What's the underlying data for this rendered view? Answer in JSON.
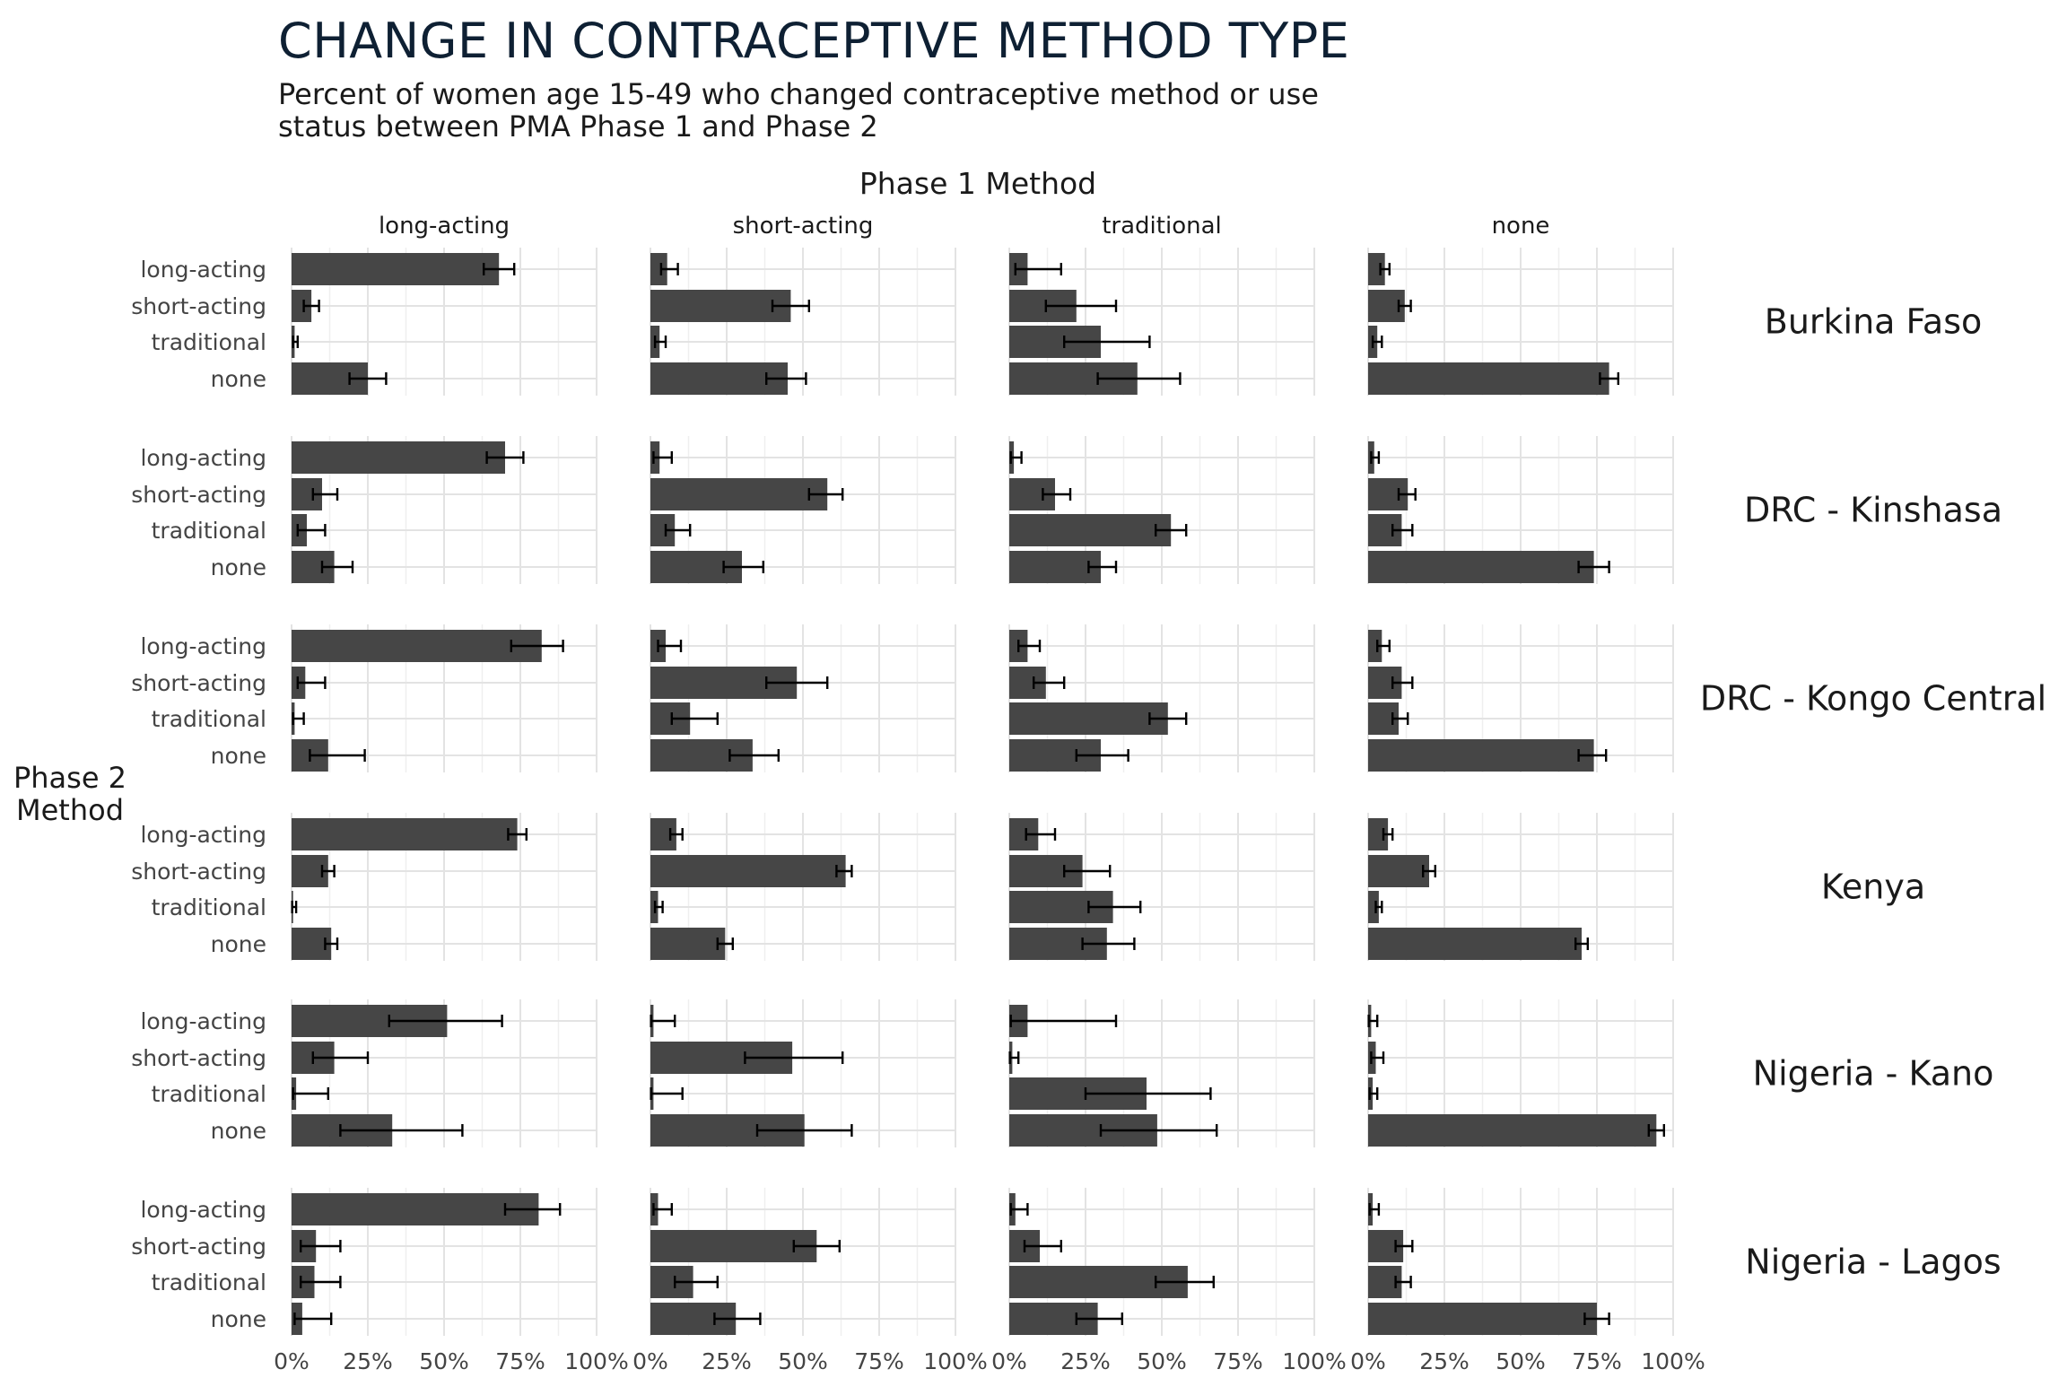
{
  "chart_data": {
    "type": "bar",
    "orientation": "horizontal",
    "title": "CHANGE IN CONTRACEPTIVE METHOD TYPE",
    "subtitle_lines": [
      "Percent of women age 15-49 who changed contraceptive method or use",
      "status between PMA Phase 1 and Phase 2"
    ],
    "column_facet_title": "Phase 1 Method",
    "columns": [
      "long-acting",
      "short-acting",
      "traditional",
      "none"
    ],
    "rows": [
      "Burkina Faso",
      "DRC - Kinshasa",
      "DRC - Kongo Central",
      "Kenya",
      "Nigeria - Kano",
      "Nigeria - Lagos"
    ],
    "ylabel_lines": [
      "Phase 2",
      "Method"
    ],
    "categories": [
      "long-acting",
      "short-acting",
      "traditional",
      "none"
    ],
    "xlim": [
      0,
      1
    ],
    "xticks": [
      0,
      0.25,
      0.5,
      0.75,
      1
    ],
    "xtick_labels": [
      "0%",
      "25%",
      "50%",
      "75%",
      "100%"
    ],
    "grid": true,
    "bar_color": "#464646",
    "panels": [
      [
        {
          "values": [
            0.68,
            0.065,
            0.01,
            0.25
          ],
          "lower": [
            0.63,
            0.04,
            0.005,
            0.19
          ],
          "upper": [
            0.73,
            0.09,
            0.02,
            0.31
          ]
        },
        {
          "values": [
            0.055,
            0.46,
            0.03,
            0.45
          ],
          "lower": [
            0.035,
            0.4,
            0.015,
            0.38
          ],
          "upper": [
            0.09,
            0.52,
            0.05,
            0.51
          ]
        },
        {
          "values": [
            0.06,
            0.22,
            0.3,
            0.42
          ],
          "lower": [
            0.02,
            0.12,
            0.18,
            0.29
          ],
          "upper": [
            0.17,
            0.35,
            0.46,
            0.56
          ]
        },
        {
          "values": [
            0.055,
            0.12,
            0.03,
            0.79
          ],
          "lower": [
            0.04,
            0.1,
            0.015,
            0.76
          ],
          "upper": [
            0.07,
            0.14,
            0.045,
            0.82
          ]
        }
      ],
      [
        {
          "values": [
            0.7,
            0.1,
            0.05,
            0.14
          ],
          "lower": [
            0.64,
            0.07,
            0.02,
            0.1
          ],
          "upper": [
            0.76,
            0.15,
            0.11,
            0.2
          ]
        },
        {
          "values": [
            0.03,
            0.58,
            0.08,
            0.3
          ],
          "lower": [
            0.01,
            0.52,
            0.05,
            0.24
          ],
          "upper": [
            0.07,
            0.63,
            0.13,
            0.37
          ]
        },
        {
          "values": [
            0.015,
            0.15,
            0.53,
            0.3
          ],
          "lower": [
            0.005,
            0.11,
            0.48,
            0.26
          ],
          "upper": [
            0.04,
            0.2,
            0.58,
            0.35
          ]
        },
        {
          "values": [
            0.02,
            0.13,
            0.11,
            0.74
          ],
          "lower": [
            0.01,
            0.1,
            0.08,
            0.69
          ],
          "upper": [
            0.035,
            0.155,
            0.145,
            0.79
          ]
        }
      ],
      [
        {
          "values": [
            0.82,
            0.045,
            0.01,
            0.12
          ],
          "lower": [
            0.72,
            0.02,
            0.005,
            0.06
          ],
          "upper": [
            0.89,
            0.11,
            0.04,
            0.24
          ]
        },
        {
          "values": [
            0.05,
            0.48,
            0.13,
            0.335
          ],
          "lower": [
            0.025,
            0.38,
            0.07,
            0.26
          ],
          "upper": [
            0.1,
            0.58,
            0.22,
            0.42
          ]
        },
        {
          "values": [
            0.06,
            0.12,
            0.52,
            0.3
          ],
          "lower": [
            0.03,
            0.08,
            0.46,
            0.22
          ],
          "upper": [
            0.1,
            0.18,
            0.58,
            0.39
          ]
        },
        {
          "values": [
            0.045,
            0.11,
            0.1,
            0.74
          ],
          "lower": [
            0.03,
            0.08,
            0.08,
            0.69
          ],
          "upper": [
            0.07,
            0.145,
            0.13,
            0.78
          ]
        }
      ],
      [
        {
          "values": [
            0.74,
            0.12,
            0.005,
            0.13
          ],
          "lower": [
            0.71,
            0.1,
            0.002,
            0.11
          ],
          "upper": [
            0.77,
            0.14,
            0.015,
            0.15
          ]
        },
        {
          "values": [
            0.085,
            0.64,
            0.025,
            0.245
          ],
          "lower": [
            0.065,
            0.61,
            0.015,
            0.22
          ],
          "upper": [
            0.105,
            0.66,
            0.04,
            0.27
          ]
        },
        {
          "values": [
            0.095,
            0.24,
            0.34,
            0.32
          ],
          "lower": [
            0.055,
            0.18,
            0.26,
            0.24
          ],
          "upper": [
            0.15,
            0.33,
            0.43,
            0.41
          ]
        },
        {
          "values": [
            0.065,
            0.2,
            0.035,
            0.7
          ],
          "lower": [
            0.05,
            0.18,
            0.025,
            0.68
          ],
          "upper": [
            0.08,
            0.22,
            0.045,
            0.72
          ]
        }
      ],
      [
        {
          "values": [
            0.51,
            0.14,
            0.015,
            0.33
          ],
          "lower": [
            0.32,
            0.07,
            0.005,
            0.16
          ],
          "upper": [
            0.69,
            0.25,
            0.12,
            0.56
          ]
        },
        {
          "values": [
            0.01,
            0.465,
            0.01,
            0.505
          ],
          "lower": [
            0.002,
            0.31,
            0.002,
            0.35
          ],
          "upper": [
            0.08,
            0.63,
            0.105,
            0.66
          ]
        },
        {
          "values": [
            0.06,
            0.01,
            0.45,
            0.485
          ],
          "lower": [
            0.005,
            0.002,
            0.25,
            0.3
          ],
          "upper": [
            0.35,
            0.03,
            0.66,
            0.68
          ]
        },
        {
          "values": [
            0.01,
            0.025,
            0.015,
            0.945
          ],
          "lower": [
            0.002,
            0.01,
            0.005,
            0.92
          ],
          "upper": [
            0.03,
            0.05,
            0.03,
            0.97
          ]
        }
      ],
      [
        {
          "values": [
            0.81,
            0.08,
            0.075,
            0.035
          ],
          "lower": [
            0.7,
            0.03,
            0.03,
            0.01
          ],
          "upper": [
            0.88,
            0.16,
            0.16,
            0.13
          ]
        },
        {
          "values": [
            0.025,
            0.545,
            0.14,
            0.28
          ],
          "lower": [
            0.01,
            0.47,
            0.08,
            0.21
          ],
          "upper": [
            0.07,
            0.62,
            0.22,
            0.36
          ]
        },
        {
          "values": [
            0.02,
            0.1,
            0.585,
            0.29
          ],
          "lower": [
            0.005,
            0.05,
            0.48,
            0.22
          ],
          "upper": [
            0.06,
            0.17,
            0.67,
            0.37
          ]
        },
        {
          "values": [
            0.015,
            0.115,
            0.11,
            0.75
          ],
          "lower": [
            0.005,
            0.09,
            0.09,
            0.71
          ],
          "upper": [
            0.035,
            0.145,
            0.14,
            0.79
          ]
        }
      ]
    ]
  }
}
